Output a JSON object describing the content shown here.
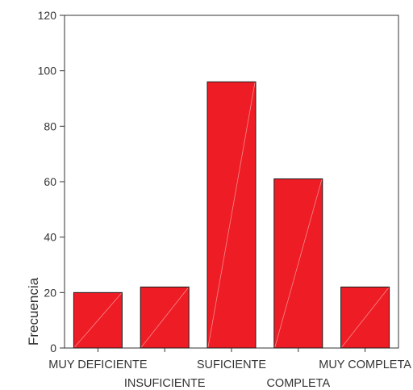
{
  "chart_data": {
    "type": "bar",
    "title": "",
    "xlabel": "",
    "ylabel": "Frecuencia",
    "ylim": [
      0,
      120
    ],
    "yticks": [
      0,
      20,
      40,
      60,
      80,
      100,
      120
    ],
    "categories": [
      "MUY DEFICIENTE",
      "INSUFICIENTE",
      "SUFICIENTE",
      "COMPLETA",
      "MUY COMPLETA"
    ],
    "values": [
      20,
      22,
      96,
      61,
      22
    ],
    "grid": false,
    "legend": "none",
    "colors": {
      "bar_fill": "#ee1c24",
      "bar_stroke": "#1a1a1a",
      "axis": "#333333",
      "text": "#333333"
    }
  }
}
